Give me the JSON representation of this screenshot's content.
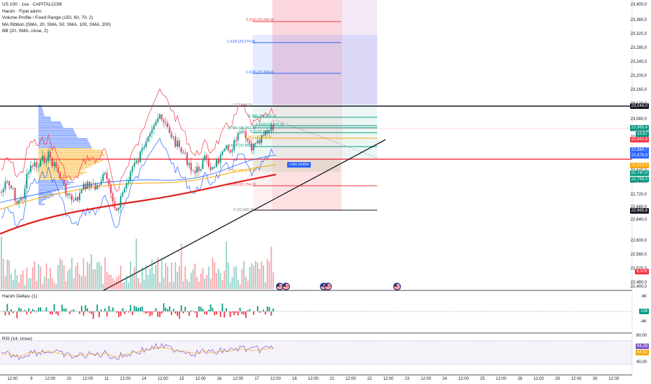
{
  "legend": {
    "title": "US 100 · 1sa · CAPITALCOM",
    "line2": "Hacim · Fiyat adımı",
    "line3": "Volume Profile / Fixed Range (150, 60, 70, 2)",
    "line4": "MA Ribbon (SMA, 20, SMA, 50, SMA, 100, SMA, 200)",
    "line5": "BB (20, SMA, close, 2)"
  },
  "panes": {
    "volume_delta": "Hacim Deltası (1)",
    "rsi": "RSI (14, close)"
  },
  "callout": "+%0.22454",
  "x_axis": [
    {
      "label": "12:00"
    },
    {
      "label": "9"
    },
    {
      "label": "12:00"
    },
    {
      "label": "10"
    },
    {
      "label": "12:00"
    },
    {
      "label": "11"
    },
    {
      "label": "12:00"
    },
    {
      "label": "14"
    },
    {
      "label": "12:00"
    },
    {
      "label": "15"
    },
    {
      "label": "12:00"
    },
    {
      "label": "16"
    },
    {
      "label": "12:00"
    },
    {
      "label": "17"
    },
    {
      "label": "12:00"
    },
    {
      "label": "18"
    },
    {
      "label": "12:00"
    },
    {
      "label": "21"
    },
    {
      "label": "12:00"
    },
    {
      "label": "22"
    },
    {
      "label": "12:00"
    },
    {
      "label": "23"
    },
    {
      "label": "12:00"
    },
    {
      "label": "24"
    },
    {
      "label": "12:00"
    },
    {
      "label": "25"
    },
    {
      "label": "12:00"
    },
    {
      "label": "28"
    },
    {
      "label": "12:00"
    },
    {
      "label": "29"
    },
    {
      "label": "12:00"
    },
    {
      "label": "30"
    },
    {
      "label": "12:00"
    }
  ],
  "y_axis": [
    "23,400,0",
    "23,360,0",
    "23,320,0",
    "23,280,0",
    "23,240,0",
    "23,200,0",
    "23,160,0",
    "23,120,0",
    "23,080,0",
    "23,000,0",
    "22,960,0",
    "22,840,0",
    "22,760,0",
    "22,720,0",
    "22,680,0",
    "22,640,0",
    "22,600,0",
    "22,560,0",
    "22,520,0",
    "22,480,0",
    "22,400,0"
  ],
  "price_tags": [
    {
      "text": "23,044,0",
      "color": "#131722"
    },
    {
      "text": "22,965,4",
      "color": "#089981"
    },
    {
      "text": "15:57",
      "color": "#089981"
    },
    {
      "text": "22,942,8",
      "color": "#f23645"
    },
    {
      "text": "22,889,7",
      "color": "#2962ff"
    },
    {
      "text": "22,879,9",
      "color": "#2962ff"
    },
    {
      "text": "22,823,8",
      "color": "#f7a600"
    },
    {
      "text": "22,797,0",
      "color": "#089981"
    },
    {
      "text": "22,795,0",
      "color": "#089981"
    },
    {
      "text": "22,665,8",
      "color": "#131722"
    },
    {
      "text": "6,37K",
      "color": "#f23645"
    }
  ],
  "vd_axis": {
    "top": "4K",
    "value": "108",
    "bottom": "-4K"
  },
  "rsi_axis": {
    "top": "80,00",
    "v1": "64,28",
    "v2": "54,52",
    "bottom": "40,00"
  },
  "fib_labels": [
    {
      "text": "2,618 (23,349,9)",
      "color": "#f23645"
    },
    {
      "text": "1,618 (23,274,8)",
      "color": "#2962ff"
    },
    {
      "text": "1,618 (23,160,4)",
      "color": "#2962ff"
    },
    {
      "text": "1 (23,044,0)",
      "color": "#787b86"
    },
    {
      "text": "0,786 (23,002,9)",
      "color": "#089981"
    },
    {
      "text": "0,618 (22,971,0)",
      "color": "#089981"
    },
    {
      "text": "0,786 (22,961,8)",
      "color": "#089981"
    },
    {
      "text": "0,5 (22,948,7)",
      "color": "#089981"
    },
    {
      "text": "0,382 (22,926,3)",
      "color": "#f7a600"
    },
    {
      "text": "0,618 (22,893,4)",
      "color": "#089981"
    },
    {
      "text": "0,382 (22,838,9)",
      "color": "#f7a600"
    },
    {
      "text": "0,236 (22,754,6)",
      "color": "#f23645"
    },
    {
      "text": "0 (22,665,8)",
      "color": "#787b86"
    }
  ],
  "colors": {
    "up": "#089981",
    "down": "#f23645",
    "blue": "#2962ff",
    "orange": "#f7a600",
    "sma200": "#e01e1e"
  }
}
